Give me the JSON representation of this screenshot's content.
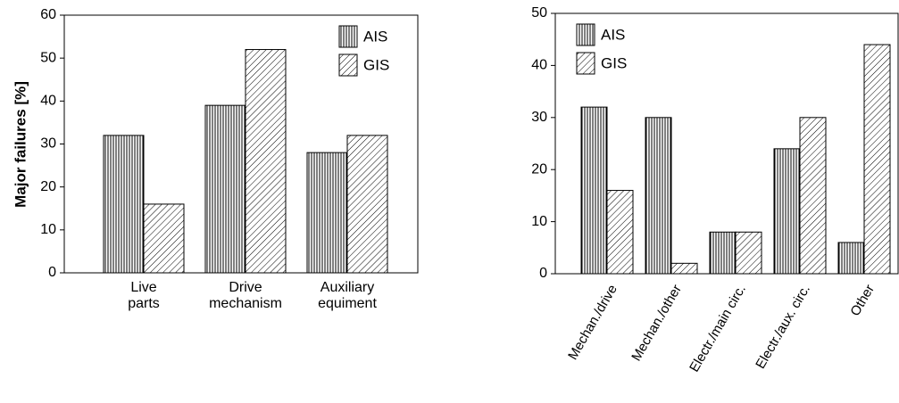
{
  "chart_data": [
    {
      "type": "bar",
      "y_label": "Major failures [%]",
      "categories": [
        "Live\nparts",
        "Drive\nmechanism",
        "Auxiliary\nequiment"
      ],
      "series": [
        {
          "name": "AIS",
          "color": "#000000",
          "hatch": "vertical",
          "values": [
            32,
            39,
            28
          ]
        },
        {
          "name": "GIS",
          "color": "#000000",
          "hatch": "diagonal",
          "values": [
            16,
            52,
            32
          ]
        }
      ],
      "ylim": [
        0,
        60
      ],
      "yticks": [
        0,
        10,
        20,
        30,
        40,
        50,
        60
      ],
      "legend": "upper right"
    },
    {
      "type": "bar",
      "categories": [
        "Mechan./drive",
        "Mechan./other",
        "Electr./main circ.",
        "Electr./aux. circ.",
        "Other"
      ],
      "series": [
        {
          "name": "AIS",
          "color": "#000000",
          "hatch": "vertical",
          "values": [
            32,
            30,
            8,
            24,
            6
          ]
        },
        {
          "name": "GIS",
          "color": "#000000",
          "hatch": "diagonal",
          "values": [
            16,
            2,
            8,
            30,
            44
          ]
        }
      ],
      "ylim": [
        0,
        50
      ],
      "yticks": [
        0,
        10,
        20,
        30,
        40,
        50
      ],
      "legend": "upper left"
    }
  ]
}
